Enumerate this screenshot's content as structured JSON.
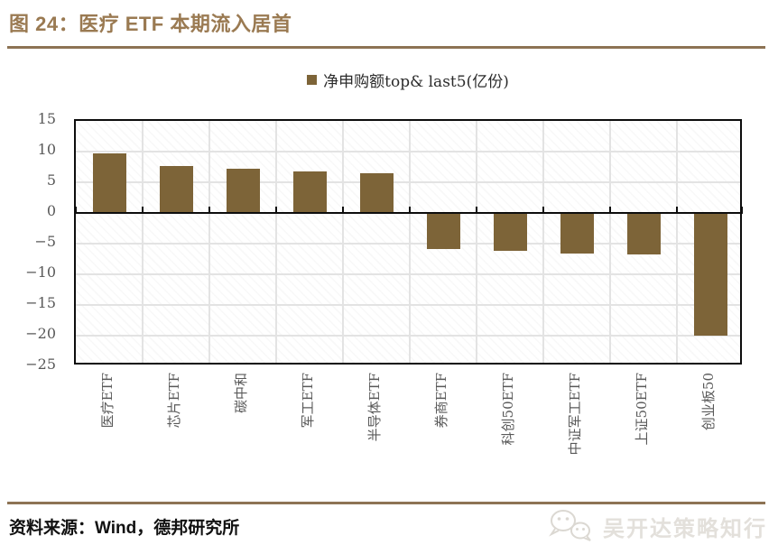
{
  "header": {
    "title": "图 24：医疗 ETF 本期流入居首"
  },
  "legend": {
    "label": "净申购额top& last5(亿份)"
  },
  "chart_data": {
    "type": "bar",
    "title": "图 24：医疗 ETF 本期流入居首",
    "legend": "净申购额top& last5(亿份)",
    "categories": [
      "医疗ETF",
      "芯片ETF",
      "碳中和",
      "军工ETF",
      "半导体ETF",
      "券商ETF",
      "科创50ETF",
      "中证军工ETF",
      "上证50ETF",
      "创业板50"
    ],
    "values": [
      9.7,
      7.7,
      7.2,
      6.7,
      6.5,
      -5.9,
      -6.2,
      -6.6,
      -6.8,
      -20.0
    ],
    "xlabel": "",
    "ylabel": "",
    "ylim": [
      -25,
      15
    ],
    "ytick_step": 5,
    "ytick_labels": [
      "15",
      "10",
      "5",
      "0",
      "−5",
      "−10",
      "−15",
      "−20",
      "−25"
    ],
    "grid": true,
    "legend_position": "top-center",
    "bar_color": "#7D6438"
  },
  "footer": {
    "source": "资料来源：Wind，德邦研究所",
    "watermark": "吴开达策略知行"
  },
  "icons": {
    "watermark_icon": "wechat-icon"
  },
  "colors": {
    "accent_brown": "#9A7A52",
    "divider_brown": "#8D7354",
    "bar_brown": "#7D6438",
    "grid_gray": "#E3E3E3",
    "axis_black": "#0D0D0D",
    "tick_text_gray": "#595959",
    "watermark_gray": "#E3E0DB"
  }
}
